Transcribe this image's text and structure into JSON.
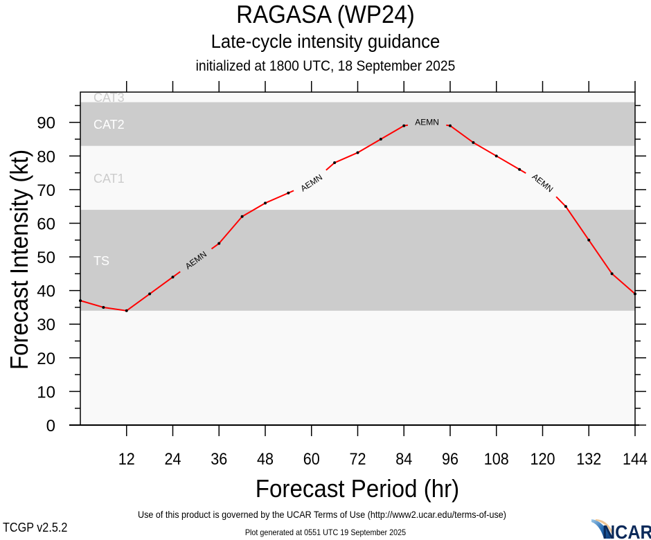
{
  "header": {
    "storm_title": "RAGASA (WP24)",
    "subtitle": "Late-cycle intensity guidance",
    "init_line": "initialized at 1800 UTC, 18 September 2025"
  },
  "footer": {
    "terms": "Use of this product is governed by the UCAR Terms of Use (http://www2.ucar.edu/terms-of-use)",
    "version": "TCGP v2.5.2",
    "generated": "Plot generated at 0551 UTC   19 September 2025",
    "logo_text": "NCAR"
  },
  "chart_data": {
    "type": "line",
    "title": "RAGASA (WP24)",
    "xlabel": "Forecast Period (hr)",
    "ylabel": "Forecast Intensity (kt)",
    "xlim": [
      0,
      144
    ],
    "ylim": [
      0,
      99
    ],
    "x_ticks": [
      12,
      24,
      36,
      48,
      60,
      72,
      84,
      96,
      108,
      120,
      132,
      144
    ],
    "y_ticks": [
      0,
      10,
      20,
      30,
      40,
      50,
      60,
      70,
      80,
      90
    ],
    "grid": false,
    "bands": [
      {
        "name": "TS",
        "from": 34,
        "to": 64,
        "fill": "#cccccc",
        "label_color": "#ffffff"
      },
      {
        "name": "CAT1",
        "from": 64,
        "to": 83,
        "fill": "#f9f9f9",
        "label_color": "#cccccc"
      },
      {
        "name": "CAT2",
        "from": 83,
        "to": 96,
        "fill": "#cccccc",
        "label_color": "#ffffff"
      },
      {
        "name": "CAT3",
        "from": 96,
        "to": 113,
        "fill": "#f9f9f9",
        "label_color": "#cccccc"
      }
    ],
    "series": [
      {
        "name": "AEMN",
        "color": "#ff0000",
        "x": [
          0,
          6,
          12,
          18,
          24,
          30,
          36,
          42,
          48,
          54,
          60,
          66,
          72,
          78,
          84,
          90,
          96,
          102,
          108,
          114,
          120,
          126,
          132,
          138,
          144
        ],
        "values": [
          37,
          35,
          34,
          39,
          44,
          49,
          54,
          62,
          66,
          69,
          72,
          78,
          81,
          85,
          89,
          90,
          89,
          84,
          80,
          76,
          72,
          65,
          55,
          45,
          39
        ],
        "label_positions_hr": [
          30,
          60,
          90,
          120
        ]
      }
    ]
  }
}
